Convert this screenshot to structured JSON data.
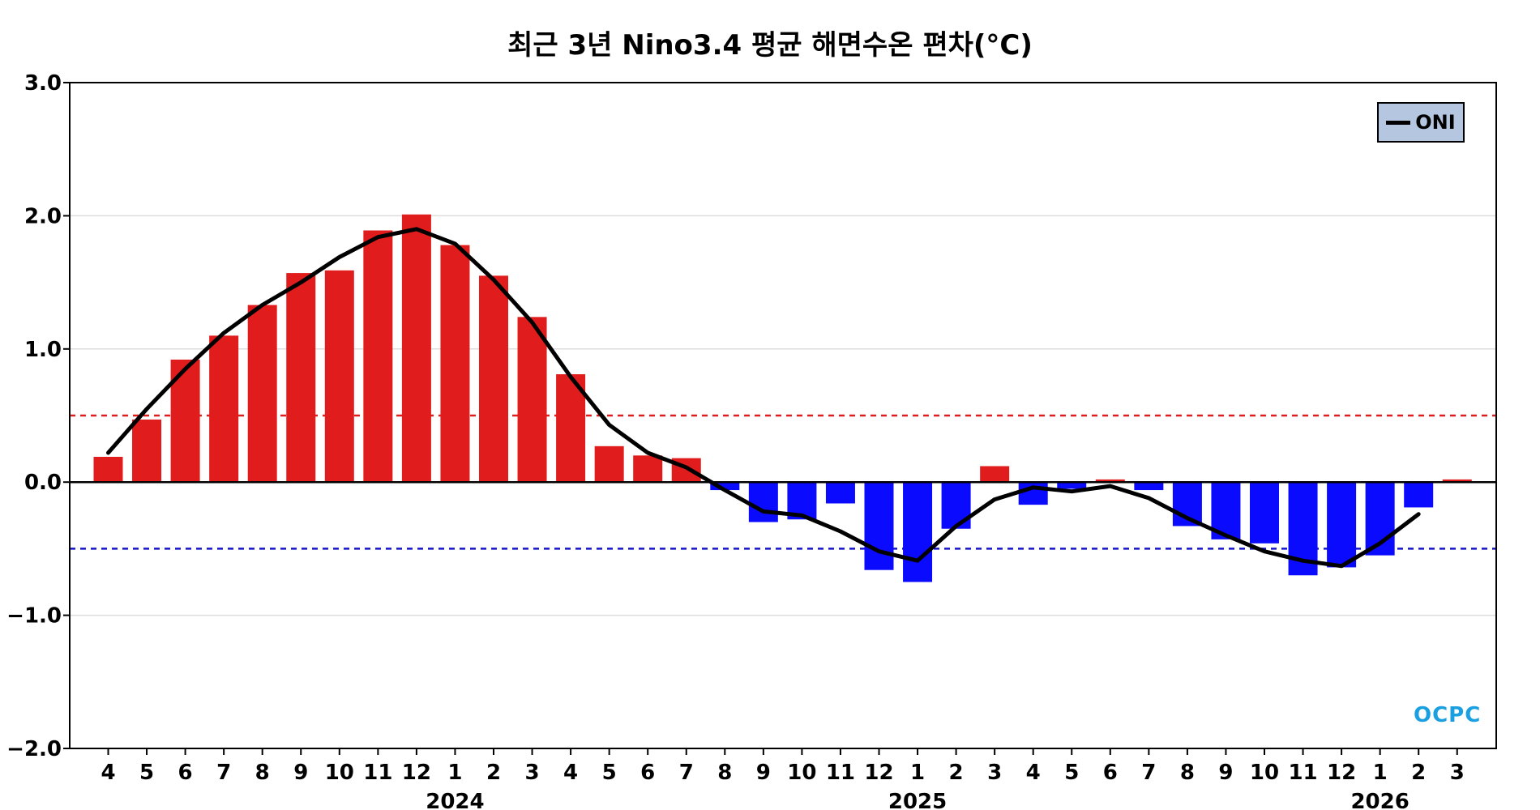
{
  "chart_data": {
    "type": "bar",
    "title": "최근 3년 Nino3.4 평균 해면수온 편차(°C)",
    "xlabel": "",
    "ylabel": "",
    "ylim": [
      -2.0,
      3.0
    ],
    "yticks": [
      "3.0",
      "2.0",
      "1.0",
      "0.0",
      "−1.0",
      "−2.0"
    ],
    "ytick_values": [
      3.0,
      2.0,
      1.0,
      0.0,
      -1.0,
      -2.0
    ],
    "categories": [
      "4",
      "5",
      "6",
      "7",
      "8",
      "9",
      "10",
      "11",
      "12",
      "1",
      "2",
      "3",
      "4",
      "5",
      "6",
      "7",
      "8",
      "9",
      "10",
      "11",
      "12",
      "1",
      "2",
      "3",
      "4",
      "5",
      "6",
      "7",
      "8",
      "9",
      "10",
      "11",
      "12",
      "1",
      "2",
      "3"
    ],
    "years": [
      {
        "label": "2024",
        "category_index": 9
      },
      {
        "label": "2025",
        "category_index": 21
      },
      {
        "label": "2026",
        "category_index": 33
      }
    ],
    "series": [
      {
        "kind": "bar",
        "values": [
          0.19,
          0.47,
          0.92,
          1.1,
          1.33,
          1.57,
          1.59,
          1.89,
          2.01,
          1.78,
          1.55,
          1.24,
          0.81,
          0.27,
          0.2,
          0.18,
          -0.06,
          -0.3,
          -0.28,
          -0.16,
          -0.66,
          -0.75,
          -0.35,
          0.12,
          -0.17,
          -0.05,
          0.02,
          -0.06,
          -0.33,
          -0.43,
          -0.46,
          -0.7,
          -0.64,
          -0.55,
          -0.19,
          0.02
        ]
      },
      {
        "name": "ONI",
        "kind": "line",
        "values": [
          0.22,
          0.55,
          0.85,
          1.12,
          1.33,
          1.5,
          1.69,
          1.84,
          1.9,
          1.79,
          1.52,
          1.2,
          0.79,
          0.43,
          0.22,
          0.11,
          -0.06,
          -0.22,
          -0.25,
          -0.37,
          -0.52,
          -0.59,
          -0.33,
          -0.13,
          -0.04,
          -0.07,
          -0.03,
          -0.12,
          -0.27,
          -0.4,
          -0.52,
          -0.59,
          -0.63,
          -0.46,
          -0.24,
          null
        ]
      }
    ],
    "thresholds": [
      0.5,
      -0.5
    ],
    "legend": "top-right",
    "grid": true
  },
  "colors": {
    "positive_bar": "#e01c1c",
    "negative_bar": "#0a0aff",
    "oni_line": "#000000",
    "threshold_positive": "#e01c1c",
    "threshold_negative": "#1414c8",
    "grid": "#dddddd",
    "legend_bg": "#b4c6e0",
    "logo": "#1aa0e0"
  },
  "legend": {
    "label": "ONI"
  },
  "logo": {
    "text": "OCPC"
  }
}
